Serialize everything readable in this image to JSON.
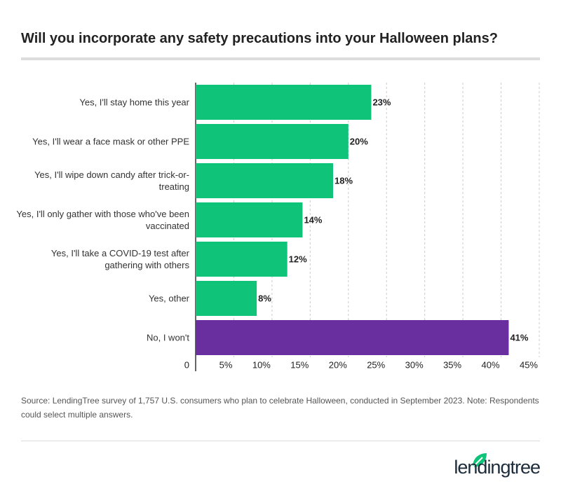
{
  "chart_data": {
    "type": "bar",
    "orientation": "horizontal",
    "title": "Will you incorporate any safety precautions into your Halloween plans?",
    "categories": [
      "Yes, I'll stay home this year",
      "Yes, I'll wear a face mask or other PPE",
      "Yes, I'll wipe down candy after trick-or-treating",
      "Yes, I'll only gather with those who've been vaccinated",
      "Yes, I'll take a COVID-19 test after gathering with others",
      "Yes, other",
      "No, I won't"
    ],
    "values": [
      23,
      20,
      18,
      14,
      12,
      8,
      41
    ],
    "value_labels": [
      "23%",
      "20%",
      "18%",
      "14%",
      "12%",
      "8%",
      "41%"
    ],
    "colors": [
      "#0fc379",
      "#0fc379",
      "#0fc379",
      "#0fc379",
      "#0fc379",
      "#0fc379",
      "#6a2f9e"
    ],
    "xlim": [
      0,
      45
    ],
    "xticks": [
      0,
      {
        "value": 5,
        "label": "5%"
      },
      {
        "value": 10,
        "label": "10%"
      },
      {
        "value": 15,
        "label": "15%"
      },
      {
        "value": 20,
        "label": "20%"
      },
      {
        "value": 25,
        "label": "25%"
      },
      {
        "value": 30,
        "label": "30%"
      },
      {
        "value": 35,
        "label": "35%"
      },
      {
        "value": 40,
        "label": "40%"
      },
      {
        "value": 45,
        "label": "45%"
      }
    ],
    "grid": true,
    "source": "Source: LendingTree survey of 1,757 U.S. consumers who plan to celebrate Halloween, conducted in September 2023. Note: Respondents could select multiple answers."
  },
  "brand": "lendingtree"
}
